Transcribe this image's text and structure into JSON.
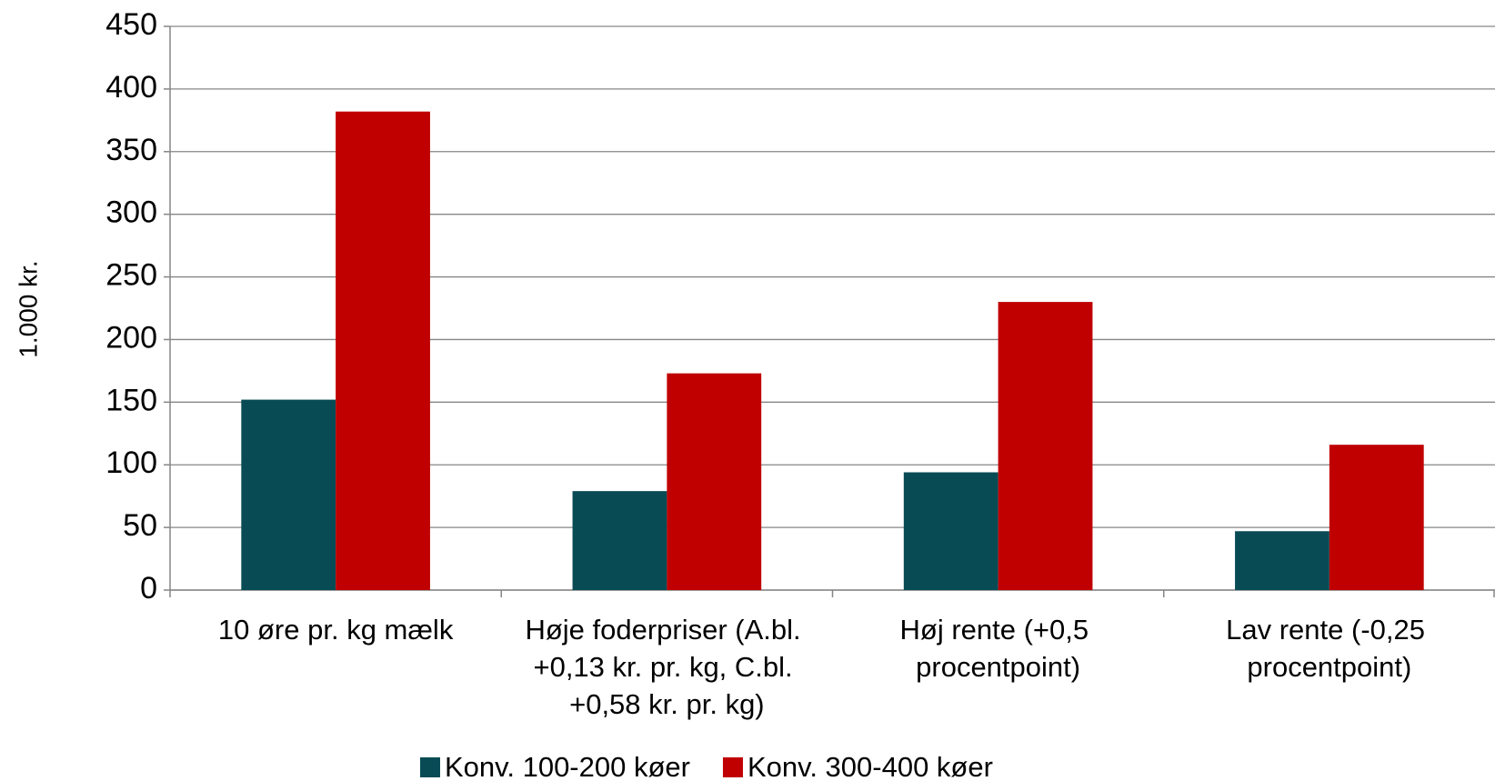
{
  "chart_data": {
    "type": "bar",
    "y_label": "1.000 kr.",
    "categories": [
      "10 øre pr. kg mælk",
      "Høje foderpriser (A.bl. +0,13 kr. pr. kg, C.bl. +0,58 kr. pr. kg)",
      "Høj rente (+0,5 procentpoint)",
      "Lav rente (-0,25 procentpoint)"
    ],
    "series": [
      {
        "name": "Konv. 100-200 køer",
        "color": "#084b55",
        "values": [
          152,
          79,
          94,
          47
        ]
      },
      {
        "name": "Konv. 300-400 køer",
        "color": "#c00000",
        "values": [
          382,
          173,
          230,
          116
        ]
      }
    ],
    "ylim": [
      0,
      450
    ],
    "yticks": [
      0,
      50,
      100,
      150,
      200,
      250,
      300,
      350,
      400,
      450
    ],
    "grid": true,
    "legend": "bottom"
  }
}
